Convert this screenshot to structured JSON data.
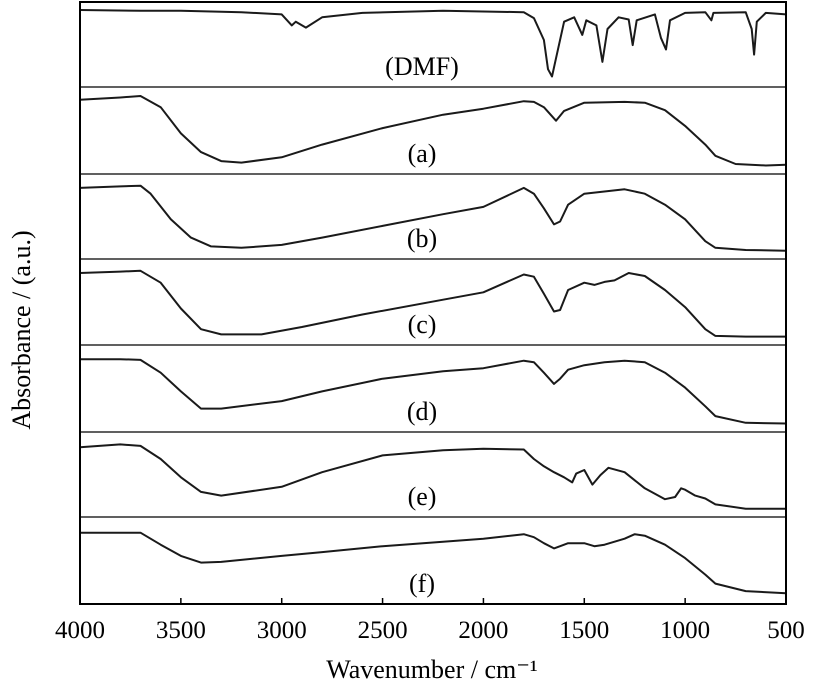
{
  "chart_data": {
    "type": "line",
    "title": "",
    "xlabel": "Wavenumber / cm⁻¹",
    "ylabel": "Absorbance / (a.u.)",
    "xlim": [
      4000,
      500
    ],
    "x_reversed": true,
    "x_ticks": [
      "4000",
      "3500",
      "3000",
      "2500",
      "2000",
      "1500",
      "1000",
      "500"
    ],
    "grid": false,
    "legend": "none",
    "line_color": "#1a1a1a",
    "series": [
      {
        "name": "(DMF)",
        "points": [
          [
            4000,
            0.96
          ],
          [
            3700,
            0.95
          ],
          [
            3500,
            0.95
          ],
          [
            3200,
            0.93
          ],
          [
            3000,
            0.9
          ],
          [
            2950,
            0.75
          ],
          [
            2930,
            0.8
          ],
          [
            2880,
            0.72
          ],
          [
            2800,
            0.86
          ],
          [
            2600,
            0.92
          ],
          [
            2200,
            0.95
          ],
          [
            1800,
            0.93
          ],
          [
            1750,
            0.85
          ],
          [
            1700,
            0.55
          ],
          [
            1680,
            0.15
          ],
          [
            1660,
            0.05
          ],
          [
            1640,
            0.3
          ],
          [
            1600,
            0.8
          ],
          [
            1550,
            0.86
          ],
          [
            1510,
            0.62
          ],
          [
            1490,
            0.82
          ],
          [
            1440,
            0.75
          ],
          [
            1410,
            0.25
          ],
          [
            1385,
            0.7
          ],
          [
            1330,
            0.86
          ],
          [
            1280,
            0.83
          ],
          [
            1260,
            0.48
          ],
          [
            1240,
            0.82
          ],
          [
            1150,
            0.9
          ],
          [
            1120,
            0.58
          ],
          [
            1095,
            0.42
          ],
          [
            1075,
            0.82
          ],
          [
            1000,
            0.92
          ],
          [
            900,
            0.93
          ],
          [
            870,
            0.82
          ],
          [
            860,
            0.92
          ],
          [
            700,
            0.93
          ],
          [
            670,
            0.7
          ],
          [
            658,
            0.35
          ],
          [
            645,
            0.8
          ],
          [
            600,
            0.92
          ],
          [
            500,
            0.9
          ]
        ]
      },
      {
        "name": "(a)",
        "points": [
          [
            4000,
            0.9
          ],
          [
            3800,
            0.93
          ],
          [
            3700,
            0.95
          ],
          [
            3600,
            0.8
          ],
          [
            3500,
            0.45
          ],
          [
            3400,
            0.2
          ],
          [
            3300,
            0.08
          ],
          [
            3200,
            0.06
          ],
          [
            3000,
            0.13
          ],
          [
            2800,
            0.3
          ],
          [
            2500,
            0.52
          ],
          [
            2200,
            0.7
          ],
          [
            2000,
            0.78
          ],
          [
            1800,
            0.88
          ],
          [
            1750,
            0.87
          ],
          [
            1700,
            0.8
          ],
          [
            1640,
            0.62
          ],
          [
            1600,
            0.75
          ],
          [
            1500,
            0.86
          ],
          [
            1300,
            0.87
          ],
          [
            1200,
            0.86
          ],
          [
            1100,
            0.76
          ],
          [
            1000,
            0.55
          ],
          [
            900,
            0.3
          ],
          [
            850,
            0.15
          ],
          [
            750,
            0.04
          ],
          [
            600,
            0.02
          ],
          [
            500,
            0.03
          ]
        ]
      },
      {
        "name": "(b)",
        "points": [
          [
            4000,
            0.88
          ],
          [
            3800,
            0.9
          ],
          [
            3700,
            0.91
          ],
          [
            3650,
            0.8
          ],
          [
            3550,
            0.45
          ],
          [
            3450,
            0.2
          ],
          [
            3350,
            0.08
          ],
          [
            3200,
            0.06
          ],
          [
            3000,
            0.1
          ],
          [
            2800,
            0.2
          ],
          [
            2500,
            0.36
          ],
          [
            2200,
            0.52
          ],
          [
            2000,
            0.62
          ],
          [
            1800,
            0.88
          ],
          [
            1750,
            0.8
          ],
          [
            1700,
            0.6
          ],
          [
            1650,
            0.38
          ],
          [
            1620,
            0.42
          ],
          [
            1580,
            0.65
          ],
          [
            1500,
            0.8
          ],
          [
            1300,
            0.86
          ],
          [
            1200,
            0.8
          ],
          [
            1100,
            0.65
          ],
          [
            1000,
            0.45
          ],
          [
            900,
            0.15
          ],
          [
            850,
            0.06
          ],
          [
            700,
            0.03
          ],
          [
            500,
            0.02
          ]
        ]
      },
      {
        "name": "(c)",
        "points": [
          [
            4000,
            0.88
          ],
          [
            3800,
            0.9
          ],
          [
            3700,
            0.91
          ],
          [
            3600,
            0.75
          ],
          [
            3500,
            0.4
          ],
          [
            3400,
            0.12
          ],
          [
            3300,
            0.05
          ],
          [
            3100,
            0.05
          ],
          [
            2900,
            0.15
          ],
          [
            2600,
            0.32
          ],
          [
            2200,
            0.52
          ],
          [
            2000,
            0.62
          ],
          [
            1800,
            0.86
          ],
          [
            1750,
            0.83
          ],
          [
            1700,
            0.6
          ],
          [
            1650,
            0.36
          ],
          [
            1620,
            0.38
          ],
          [
            1580,
            0.65
          ],
          [
            1500,
            0.75
          ],
          [
            1450,
            0.72
          ],
          [
            1400,
            0.76
          ],
          [
            1350,
            0.78
          ],
          [
            1280,
            0.88
          ],
          [
            1200,
            0.84
          ],
          [
            1100,
            0.65
          ],
          [
            1000,
            0.42
          ],
          [
            900,
            0.12
          ],
          [
            850,
            0.03
          ],
          [
            700,
            0.02
          ],
          [
            500,
            0.02
          ]
        ]
      },
      {
        "name": "(d)",
        "points": [
          [
            4000,
            0.88
          ],
          [
            3800,
            0.88
          ],
          [
            3700,
            0.87
          ],
          [
            3600,
            0.7
          ],
          [
            3500,
            0.45
          ],
          [
            3400,
            0.22
          ],
          [
            3300,
            0.22
          ],
          [
            3000,
            0.32
          ],
          [
            2800,
            0.45
          ],
          [
            2500,
            0.62
          ],
          [
            2200,
            0.72
          ],
          [
            2000,
            0.76
          ],
          [
            1800,
            0.86
          ],
          [
            1750,
            0.84
          ],
          [
            1700,
            0.7
          ],
          [
            1650,
            0.55
          ],
          [
            1620,
            0.62
          ],
          [
            1580,
            0.74
          ],
          [
            1500,
            0.8
          ],
          [
            1400,
            0.84
          ],
          [
            1300,
            0.86
          ],
          [
            1200,
            0.84
          ],
          [
            1100,
            0.7
          ],
          [
            1000,
            0.5
          ],
          [
            900,
            0.25
          ],
          [
            850,
            0.12
          ],
          [
            700,
            0.03
          ],
          [
            500,
            0.02
          ]
        ]
      },
      {
        "name": "(e)",
        "points": [
          [
            4000,
            0.86
          ],
          [
            3800,
            0.9
          ],
          [
            3700,
            0.88
          ],
          [
            3600,
            0.7
          ],
          [
            3500,
            0.45
          ],
          [
            3400,
            0.25
          ],
          [
            3300,
            0.2
          ],
          [
            3000,
            0.32
          ],
          [
            2800,
            0.52
          ],
          [
            2500,
            0.75
          ],
          [
            2200,
            0.82
          ],
          [
            2000,
            0.84
          ],
          [
            1800,
            0.83
          ],
          [
            1750,
            0.7
          ],
          [
            1700,
            0.6
          ],
          [
            1650,
            0.52
          ],
          [
            1600,
            0.45
          ],
          [
            1560,
            0.38
          ],
          [
            1540,
            0.5
          ],
          [
            1500,
            0.55
          ],
          [
            1460,
            0.35
          ],
          [
            1420,
            0.48
          ],
          [
            1380,
            0.58
          ],
          [
            1300,
            0.52
          ],
          [
            1200,
            0.3
          ],
          [
            1100,
            0.15
          ],
          [
            1050,
            0.18
          ],
          [
            1020,
            0.3
          ],
          [
            1000,
            0.28
          ],
          [
            950,
            0.2
          ],
          [
            900,
            0.16
          ],
          [
            850,
            0.08
          ],
          [
            700,
            0.02
          ],
          [
            500,
            0.02
          ]
        ]
      },
      {
        "name": "(f)",
        "points": [
          [
            4000,
            0.86
          ],
          [
            3800,
            0.86
          ],
          [
            3700,
            0.86
          ],
          [
            3600,
            0.7
          ],
          [
            3500,
            0.55
          ],
          [
            3400,
            0.46
          ],
          [
            3300,
            0.47
          ],
          [
            3000,
            0.55
          ],
          [
            2800,
            0.6
          ],
          [
            2500,
            0.68
          ],
          [
            2200,
            0.74
          ],
          [
            2000,
            0.78
          ],
          [
            1800,
            0.84
          ],
          [
            1750,
            0.8
          ],
          [
            1700,
            0.72
          ],
          [
            1650,
            0.65
          ],
          [
            1620,
            0.68
          ],
          [
            1580,
            0.72
          ],
          [
            1500,
            0.72
          ],
          [
            1450,
            0.68
          ],
          [
            1400,
            0.7
          ],
          [
            1300,
            0.78
          ],
          [
            1250,
            0.84
          ],
          [
            1200,
            0.82
          ],
          [
            1100,
            0.7
          ],
          [
            1000,
            0.52
          ],
          [
            900,
            0.3
          ],
          [
            850,
            0.18
          ],
          [
            700,
            0.08
          ],
          [
            500,
            0.05
          ]
        ]
      }
    ]
  }
}
